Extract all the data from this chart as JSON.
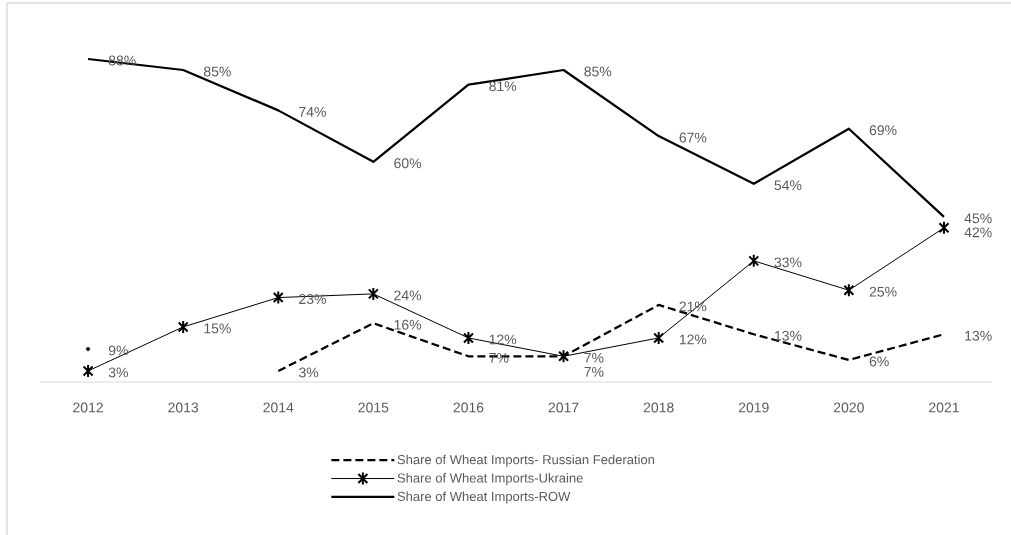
{
  "chart_data": {
    "type": "line",
    "categories": [
      "2012",
      "2013",
      "2014",
      "2015",
      "2016",
      "2017",
      "2018",
      "2019",
      "2020",
      "2021"
    ],
    "tick_labels": "x",
    "legend": "bottom",
    "series": [
      {
        "name": "Share of Wheat Imports- Russian Federation",
        "color": "#000000",
        "line_style": "dashed",
        "values": [
          9,
          null,
          3,
          16,
          7,
          7,
          21,
          13,
          6,
          13
        ],
        "value_labels": [
          "9%",
          null,
          "3%",
          "16%",
          "7%",
          "7%",
          "21%",
          "13%",
          "6%",
          "13%"
        ]
      },
      {
        "name": "Share of Wheat Imports-Ukraine",
        "color": "#000000",
        "line_style": "solid",
        "marker": "cross",
        "values": [
          3,
          15,
          23,
          24,
          12,
          7,
          12,
          33,
          25,
          42
        ],
        "value_labels": [
          "3%",
          "15%",
          "23%",
          "24%",
          "12%",
          "7%",
          "12%",
          "33%",
          "25%",
          "42%"
        ]
      },
      {
        "name": "Share of Wheat Imports-ROW",
        "color": "#000000",
        "line_style": "solid",
        "marker": "none",
        "values": [
          88,
          85,
          74,
          60,
          81,
          85,
          67,
          54,
          69,
          45
        ],
        "value_labels": [
          "88%",
          "85%",
          "74%",
          "60%",
          "81%",
          "85%",
          "67%",
          "54%",
          "69%",
          "45%"
        ]
      }
    ]
  }
}
